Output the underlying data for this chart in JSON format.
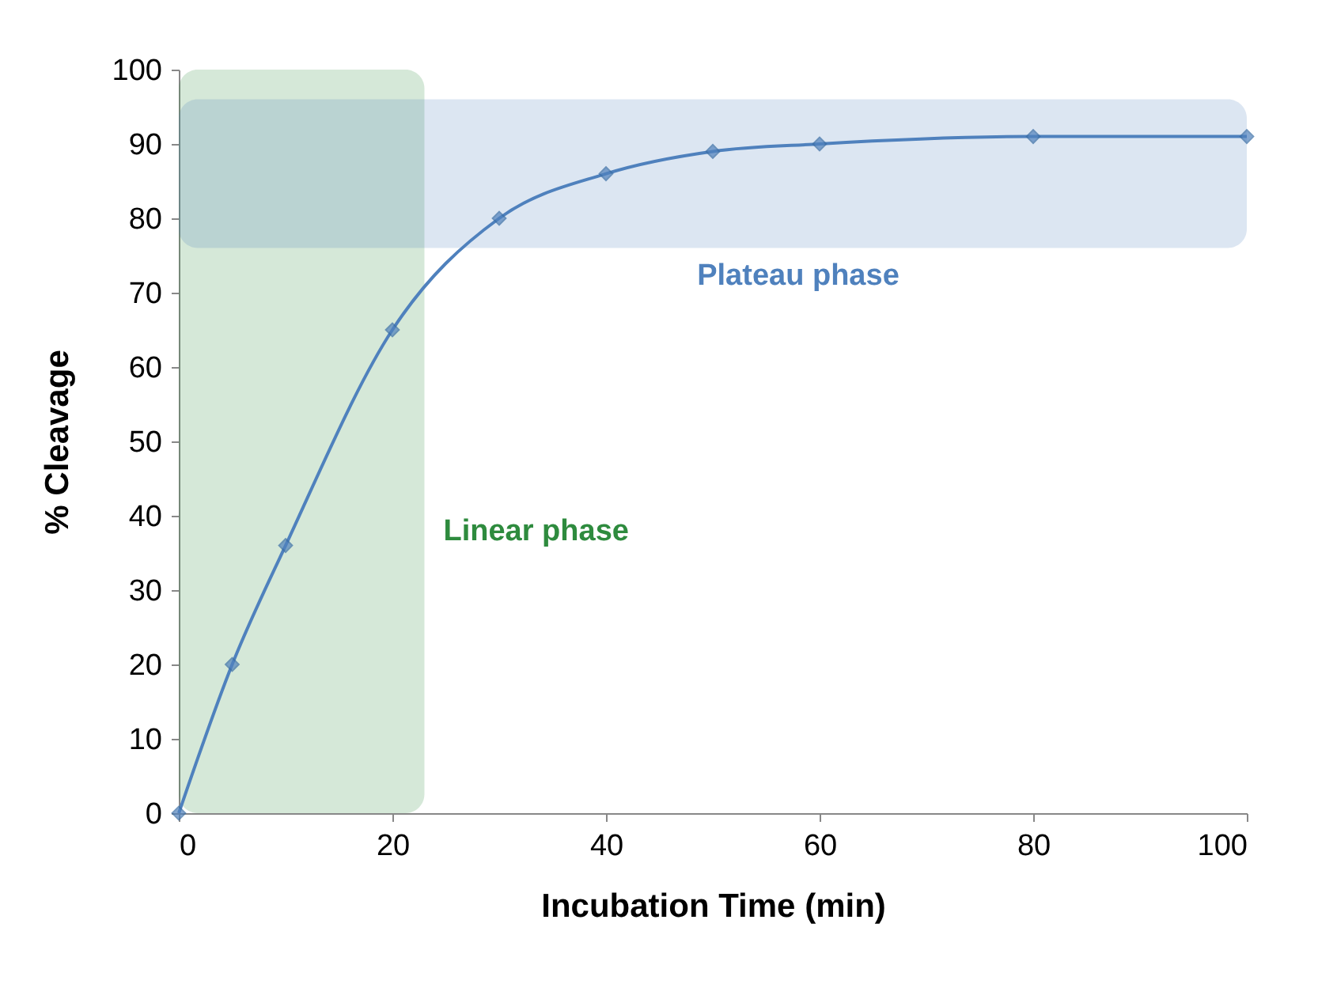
{
  "chart_data": {
    "type": "line",
    "xlabel": "Incubation Time (min)",
    "ylabel": "% Cleavage",
    "x": [
      0,
      5,
      10,
      20,
      30,
      40,
      50,
      60,
      80,
      100
    ],
    "series": [
      {
        "color": "#4f81bd",
        "values": [
          0,
          20,
          36,
          65,
          80,
          86,
          89,
          90,
          91,
          91
        ]
      }
    ],
    "xlim": [
      0,
      100
    ],
    "xticks": [
      0,
      20,
      40,
      60,
      80,
      100
    ],
    "ylim": [
      0,
      100
    ],
    "yticks": [
      0,
      10,
      20,
      30,
      40,
      50,
      60,
      70,
      80,
      90,
      100
    ],
    "grid": false,
    "marker": "diamond",
    "line_style": "solid",
    "bands": [
      {
        "axis": "x",
        "from": 0,
        "to": 23,
        "label": "Linear phase",
        "color": "#2e8b3e"
      },
      {
        "axis": "y",
        "from": 76,
        "to": 96,
        "label": "Plateau phase",
        "color": "#4f81bd"
      }
    ]
  }
}
